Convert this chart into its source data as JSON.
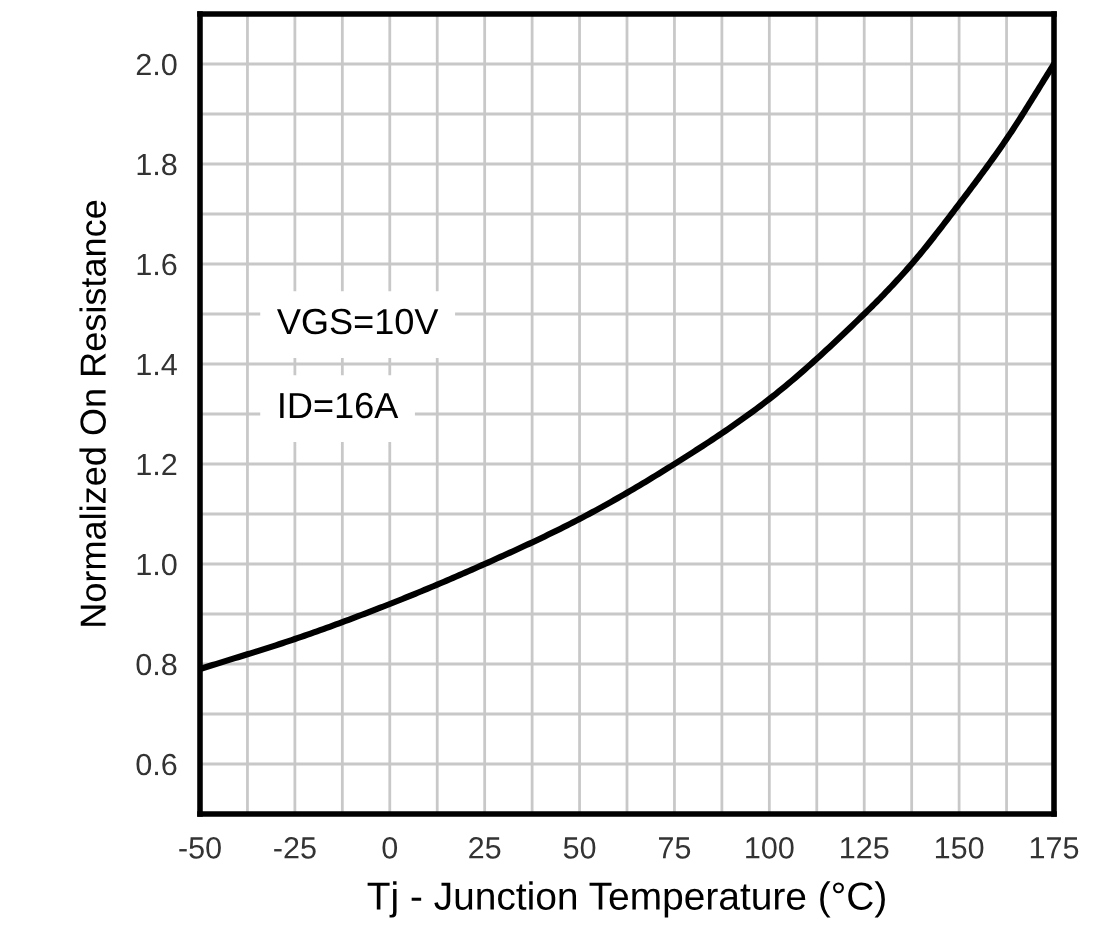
{
  "chart_data": {
    "type": "line",
    "xlabel": "Tj - Junction Temperature (°C)",
    "ylabel": "Normalized On Resistance",
    "annotations": [
      "VGS=10V",
      "ID=16A"
    ],
    "x": [
      -50,
      -25,
      0,
      25,
      50,
      75,
      100,
      125,
      137.5,
      150,
      162.5,
      175
    ],
    "series": [
      {
        "color": "#000000",
        "values": [
          0.79,
          0.85,
          0.92,
          1.0,
          1.09,
          1.2,
          1.33,
          1.5,
          1.6,
          1.72,
          1.85,
          2.0
        ]
      }
    ],
    "xlim": [
      -50,
      175
    ],
    "xticks": [
      -50,
      -25,
      0,
      25,
      50,
      75,
      100,
      125,
      150,
      175
    ],
    "ylim": [
      0.5,
      2.1
    ],
    "yticks": [
      {
        "value": 0.6,
        "label": "0.6"
      },
      {
        "value": 0.8,
        "label": "0.8"
      },
      {
        "value": 1.0,
        "label": "1.0"
      },
      {
        "value": 1.2,
        "label": "1.2"
      },
      {
        "value": 1.4,
        "label": "1.4"
      },
      {
        "value": 1.6,
        "label": "1.6"
      },
      {
        "value": 1.8,
        "label": "1.8"
      },
      {
        "value": 2.0,
        "label": "2.0"
      }
    ],
    "grid": true,
    "marker": "none",
    "line_style": "solid"
  }
}
